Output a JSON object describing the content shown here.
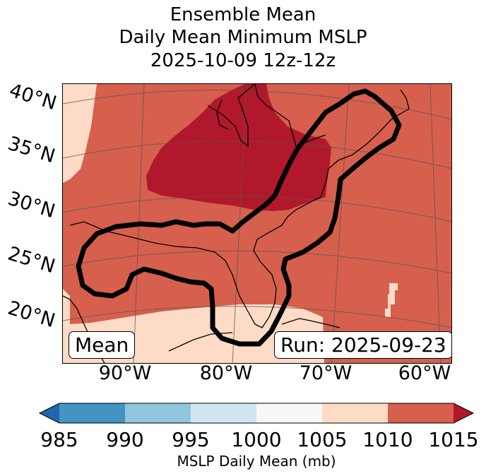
{
  "title": {
    "line1": "Ensemble Mean",
    "line2": "Daily Mean Minimum MSLP",
    "line3": "2025-10-09 12z-12z"
  },
  "map": {
    "lat_labels": [
      "40°N",
      "35°N",
      "30°N",
      "25°N",
      "20°N"
    ],
    "lon_labels": [
      "90°W",
      "80°W",
      "70°W",
      "60°W"
    ],
    "mean_box_text": "Mean",
    "run_box_text": "Run: 2025-09-23",
    "regions": [
      {
        "name": "high-pressure-core",
        "range_mb": "1010-1015"
      },
      {
        "name": "southern-low-pressure",
        "range_mb": "1005-1010"
      }
    ]
  },
  "colorbar": {
    "label": "MSLP Daily Mean (mb)",
    "ticks": [
      "985",
      "990",
      "995",
      "1000",
      "1005",
      "1010",
      "1015"
    ],
    "colors": [
      "#2166ac",
      "#4393c3",
      "#92c5de",
      "#d1e5f0",
      "#f7f7f7",
      "#fddbc7",
      "#d6604d",
      "#b2182b"
    ]
  },
  "colors": {
    "band_1005_1010": "#fddbc7",
    "band_1010_1015": "#d6604d",
    "band_above_1015": "#b2182b",
    "contour": "#000000",
    "land_outline": "#000000",
    "gridline": "#555555"
  }
}
